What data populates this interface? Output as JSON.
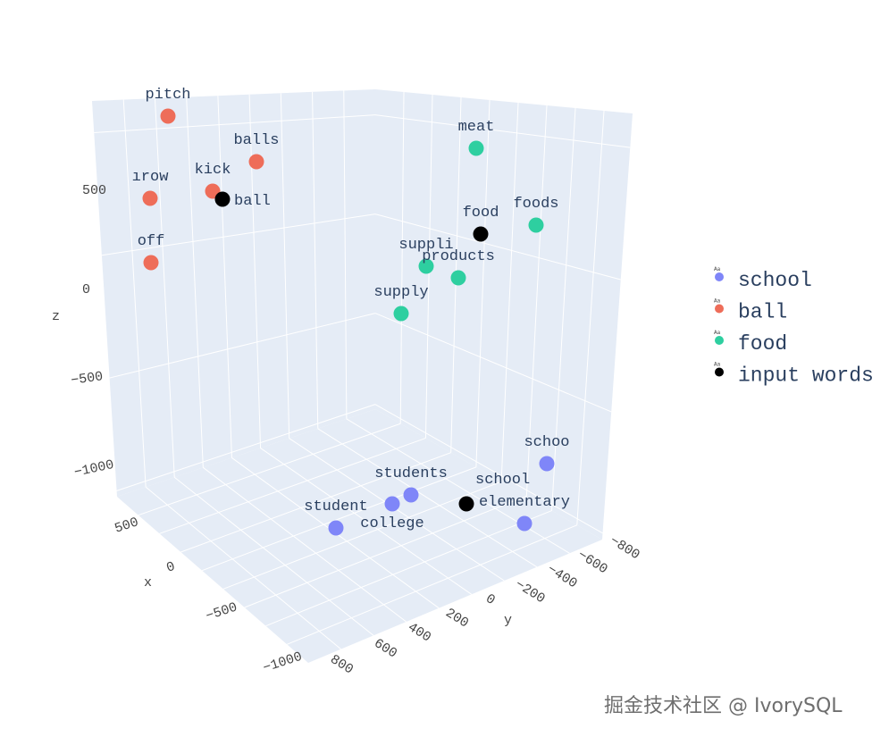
{
  "chart_data": {
    "type": "scatter3d",
    "title": "",
    "axes": {
      "x": {
        "label": "x",
        "ticks": [
          "500",
          "0",
          "−500",
          "−1000"
        ]
      },
      "y": {
        "label": "y",
        "ticks": [
          "800",
          "600",
          "400",
          "200",
          "0",
          "−200",
          "−400",
          "−600",
          "−800"
        ]
      },
      "z": {
        "label": "z",
        "ticks": [
          "500",
          "0",
          "−500",
          "−1000"
        ]
      }
    },
    "grid": true,
    "legend_position": "right",
    "series": [
      {
        "name": "school",
        "color": "#7f86f8",
        "points": [
          "school",
          "students",
          "college",
          "student",
          "elementary"
        ]
      },
      {
        "name": "ball",
        "color": "#ee6d59",
        "points": [
          "pitch",
          "balls",
          "throw",
          "kick",
          "off"
        ]
      },
      {
        "name": "food",
        "color": "#2ecfa0",
        "points": [
          "meat",
          "foods",
          "supplies",
          "products",
          "supply"
        ]
      },
      {
        "name": "input words",
        "color": "#000000",
        "points": [
          "ball",
          "food",
          "school"
        ]
      }
    ],
    "visible_labels": {
      "school": [
        "schoo",
        "students",
        "college",
        "student",
        "elementary"
      ],
      "ball": [
        "pitch",
        "balls",
        "ırow",
        "kick",
        "off"
      ],
      "food": [
        "meat",
        "foods",
        "suppli",
        "products",
        "supply"
      ],
      "input words": [
        "ball",
        "food",
        "school"
      ]
    }
  },
  "watermark": "掘金技术社区 @ IvorySQL"
}
